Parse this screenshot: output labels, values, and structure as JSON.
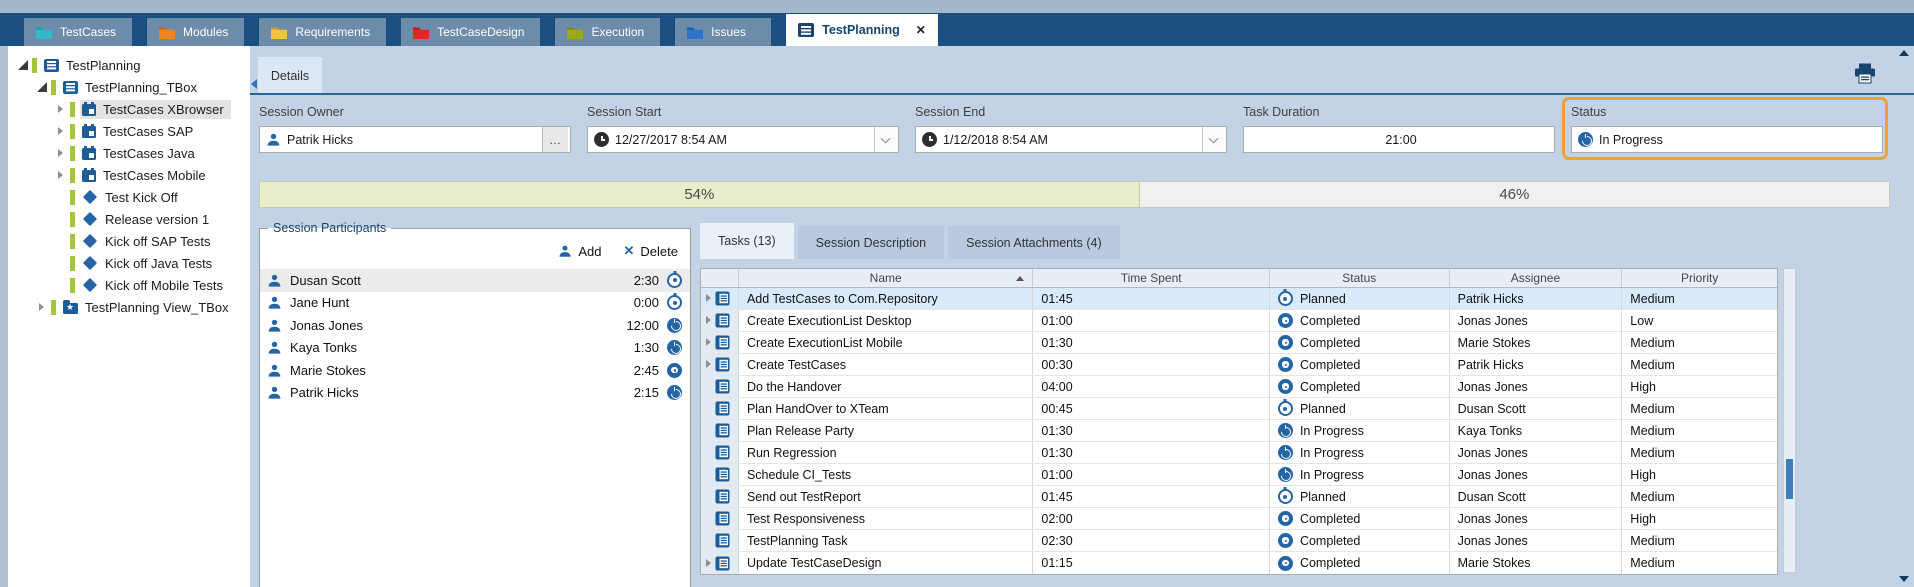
{
  "window": {
    "tabs": [
      {
        "label": "TestCases",
        "folder_color": "#31b8cb"
      },
      {
        "label": "Modules",
        "folder_color": "#f0841f"
      },
      {
        "label": "Requirements",
        "folder_color": "#f6c53a"
      },
      {
        "label": "TestCaseDesign",
        "folder_color": "#e52620"
      },
      {
        "label": "Execution",
        "folder_color": "#9aa919"
      },
      {
        "label": "Issues",
        "folder_color": "#2d74c9"
      }
    ],
    "active_tab": {
      "label": "TestPlanning",
      "close_label": "✕"
    }
  },
  "tree": {
    "items": [
      {
        "label": "TestPlanning",
        "level": 0,
        "icon": "list",
        "expand": "expanded",
        "selected": false
      },
      {
        "label": "TestPlanning_TBox",
        "level": 1,
        "icon": "list",
        "expand": "expanded",
        "selected": false
      },
      {
        "label": "TestCases XBrowser",
        "level": 2,
        "icon": "calendar",
        "expand": "collapsed",
        "selected": true
      },
      {
        "label": "TestCases SAP",
        "level": 2,
        "icon": "calendar",
        "expand": "collapsed",
        "selected": false
      },
      {
        "label": "TestCases Java",
        "level": 2,
        "icon": "calendar",
        "expand": "collapsed",
        "selected": false
      },
      {
        "label": "TestCases Mobile",
        "level": 2,
        "icon": "calendar",
        "expand": "collapsed",
        "selected": false
      },
      {
        "label": "Test Kick Off",
        "level": 2,
        "icon": "diamond",
        "expand": "none",
        "selected": false
      },
      {
        "label": "Release version 1",
        "level": 2,
        "icon": "diamond",
        "expand": "none",
        "selected": false
      },
      {
        "label": "Kick off SAP Tests",
        "level": 2,
        "icon": "diamond",
        "expand": "none",
        "selected": false
      },
      {
        "label": "Kick off Java Tests",
        "level": 2,
        "icon": "diamond",
        "expand": "none",
        "selected": false
      },
      {
        "label": "Kick off Mobile Tests",
        "level": 2,
        "icon": "diamond",
        "expand": "none",
        "selected": false
      },
      {
        "label": "TestPlanning View_TBox",
        "level": 1,
        "icon": "folder-star",
        "expand": "collapsed",
        "selected": false
      }
    ]
  },
  "details": {
    "tab_label": "Details",
    "highlight_color": "#e8a33d",
    "fields": [
      {
        "label": "Session Owner",
        "value": "Patrik Hicks",
        "button_label": "…"
      },
      {
        "label": "Session Start",
        "value": "12/27/2017 8:54 AM"
      },
      {
        "label": "Session End",
        "value": "1/12/2018 8:54 AM"
      },
      {
        "label": "Task Duration",
        "value": "21:00"
      },
      {
        "label": "Status",
        "value": "In Progress",
        "status_key": "inprogress",
        "highlighted": true
      }
    ]
  },
  "progress": {
    "left_label": "54%",
    "right_label": "46%",
    "left_percent": 54
  },
  "participants": {
    "title": "Session Participants",
    "add_label": "Add",
    "delete_label": "Delete",
    "delete_glyph": "✕",
    "rows": [
      {
        "name": "Dusan Scott",
        "time": "2:30",
        "status": "planned",
        "selected": true
      },
      {
        "name": "Jane Hunt",
        "time": "0:00",
        "status": "planned",
        "selected": false
      },
      {
        "name": "Jonas Jones",
        "time": "12:00",
        "status": "inprogress",
        "selected": false
      },
      {
        "name": "Kaya Tonks",
        "time": "1:30",
        "status": "inprogress",
        "selected": false
      },
      {
        "name": "Marie Stokes",
        "time": "2:45",
        "status": "completed",
        "selected": false
      },
      {
        "name": "Patrik Hicks",
        "time": "2:15",
        "status": "inprogress",
        "selected": false
      }
    ]
  },
  "tasks": {
    "tabs": [
      {
        "label": "Tasks (13)",
        "active": true
      },
      {
        "label": "Session Description",
        "active": false
      },
      {
        "label": "Session Attachments (4)",
        "active": false
      }
    ],
    "columns": [
      "Name",
      "Time Spent",
      "Status",
      "Assignee",
      "Priority"
    ],
    "sort_column": "Name",
    "sort_direction": "ascending",
    "rows": [
      {
        "name": "Add TestCases to Com.Repository",
        "time_spent": "01:45",
        "status": "Planned",
        "assignee": "Patrik Hicks",
        "priority": "Medium",
        "expandable": true,
        "selected": true
      },
      {
        "name": "Create ExecutionList Desktop",
        "time_spent": "01:00",
        "status": "Completed",
        "assignee": "Jonas Jones",
        "priority": "Low",
        "expandable": true,
        "selected": false
      },
      {
        "name": "Create ExecutionList Mobile",
        "time_spent": "01:30",
        "status": "Completed",
        "assignee": "Marie Stokes",
        "priority": "Medium",
        "expandable": true,
        "selected": false
      },
      {
        "name": "Create TestCases",
        "time_spent": "00:30",
        "status": "Completed",
        "assignee": "Patrik Hicks",
        "priority": "Medium",
        "expandable": true,
        "selected": false
      },
      {
        "name": "Do the Handover",
        "time_spent": "04:00",
        "status": "Completed",
        "assignee": "Jonas Jones",
        "priority": "High",
        "expandable": false,
        "selected": false
      },
      {
        "name": "Plan HandOver to XTeam",
        "time_spent": "00:45",
        "status": "Planned",
        "assignee": "Dusan Scott",
        "priority": "Medium",
        "expandable": false,
        "selected": false
      },
      {
        "name": "Plan Release Party",
        "time_spent": "01:30",
        "status": "In Progress",
        "assignee": "Kaya Tonks",
        "priority": "Medium",
        "expandable": false,
        "selected": false
      },
      {
        "name": "Run Regression",
        "time_spent": "01:30",
        "status": "In Progress",
        "assignee": "Jonas Jones",
        "priority": "Medium",
        "expandable": false,
        "selected": false
      },
      {
        "name": "Schedule CI_Tests",
        "time_spent": "01:00",
        "status": "In Progress",
        "assignee": "Jonas Jones",
        "priority": "High",
        "expandable": false,
        "selected": false
      },
      {
        "name": "Send out TestReport",
        "time_spent": "01:45",
        "status": "Planned",
        "assignee": "Dusan Scott",
        "priority": "Medium",
        "expandable": false,
        "selected": false
      },
      {
        "name": "Test Responsiveness",
        "time_spent": "02:00",
        "status": "Completed",
        "assignee": "Jonas Jones",
        "priority": "High",
        "expandable": false,
        "selected": false
      },
      {
        "name": "TestPlanning Task",
        "time_spent": "02:30",
        "status": "Completed",
        "assignee": "Jonas Jones",
        "priority": "Medium",
        "expandable": false,
        "selected": false
      },
      {
        "name": "Update TestCaseDesign",
        "time_spent": "01:15",
        "status": "Completed",
        "assignee": "Marie Stokes",
        "priority": "Medium",
        "expandable": true,
        "selected": false
      }
    ]
  }
}
